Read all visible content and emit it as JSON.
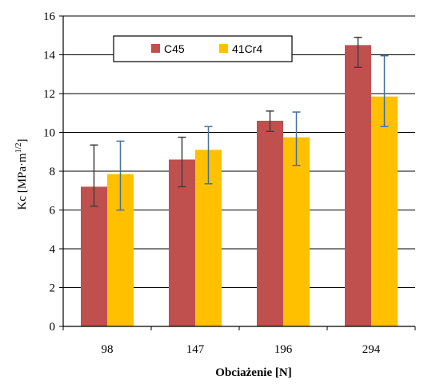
{
  "chart_data": {
    "type": "bar",
    "title": "",
    "xlabel": "Obciażenie [N]",
    "ylabel_main": "Kc  [MPa",
    "ylabel_sep": "·",
    "ylabel_unit": "m",
    "ylabel_exp": "1/2",
    "ylabel_close": "]",
    "categories": [
      "98",
      "147",
      "196",
      "294"
    ],
    "ylim": [
      0,
      16
    ],
    "yticks": [
      0,
      2,
      4,
      6,
      8,
      10,
      12,
      14,
      16
    ],
    "grid": true,
    "legend_position": "top-center",
    "series": [
      {
        "name": "C45",
        "color": "#c0504d",
        "values": [
          7.2,
          8.6,
          10.6,
          14.5
        ],
        "err_low": [
          6.2,
          7.2,
          10.05,
          13.35
        ],
        "err_high": [
          9.35,
          9.75,
          11.1,
          14.9
        ]
      },
      {
        "name": "41Cr4",
        "color": "#ffc000",
        "values": [
          7.85,
          9.1,
          9.75,
          11.85
        ],
        "err_low": [
          6.0,
          7.35,
          8.3,
          10.3
        ],
        "err_high": [
          9.55,
          10.3,
          11.05,
          13.95
        ]
      }
    ],
    "error_bar_colors": [
      "#3f3f3f",
      "#41729f"
    ]
  }
}
